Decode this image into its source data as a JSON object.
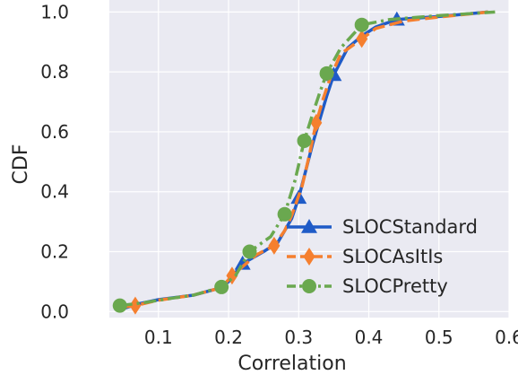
{
  "chart_data": {
    "type": "line",
    "title": "",
    "xlabel": "Correlation",
    "ylabel": "CDF",
    "xlim": [
      0.03,
      0.6
    ],
    "ylim": [
      -0.02,
      1.04
    ],
    "xticks": [
      0.1,
      0.2,
      0.3,
      0.4,
      0.5,
      0.6
    ],
    "xtick_labels": [
      "0.1",
      "0.2",
      "0.3",
      "0.4",
      "0.5",
      "0.6"
    ],
    "yticks": [
      0.0,
      0.2,
      0.4,
      0.6,
      0.8,
      1.0
    ],
    "ytick_labels": [
      "0.0",
      "0.2",
      "0.4",
      "0.6",
      "0.8",
      "1.0"
    ],
    "grid": true,
    "background": "#eaeaf2",
    "legend_position": "lower-right",
    "series": [
      {
        "name": "SLOCStandard",
        "color": "#1f5bc7",
        "marker": "triangle",
        "linestyle": "solid",
        "points": [
          [
            0.05,
            0.01
          ],
          [
            0.07,
            0.025
          ],
          [
            0.1,
            0.04
          ],
          [
            0.15,
            0.055
          ],
          [
            0.19,
            0.08
          ],
          [
            0.2,
            0.1
          ],
          [
            0.21,
            0.13
          ],
          [
            0.22,
            0.16
          ],
          [
            0.25,
            0.2
          ],
          [
            0.27,
            0.23
          ],
          [
            0.28,
            0.27
          ],
          [
            0.29,
            0.31
          ],
          [
            0.3,
            0.38
          ],
          [
            0.31,
            0.47
          ],
          [
            0.32,
            0.56
          ],
          [
            0.33,
            0.64
          ],
          [
            0.34,
            0.72
          ],
          [
            0.35,
            0.79
          ],
          [
            0.37,
            0.88
          ],
          [
            0.39,
            0.92
          ],
          [
            0.41,
            0.95
          ],
          [
            0.44,
            0.975
          ],
          [
            0.5,
            0.985
          ],
          [
            0.57,
            1.0
          ]
        ],
        "marker_at": [
          [
            0.3,
            0.38
          ],
          [
            0.35,
            0.79
          ],
          [
            0.44,
            0.975
          ],
          [
            0.22,
            0.16
          ]
        ]
      },
      {
        "name": "SLOCAsItIs",
        "color": "#f57f2f",
        "marker": "diamond",
        "linestyle": "dashed",
        "points": [
          [
            0.05,
            0.015
          ],
          [
            0.067,
            0.02
          ],
          [
            0.1,
            0.038
          ],
          [
            0.15,
            0.055
          ],
          [
            0.19,
            0.08
          ],
          [
            0.205,
            0.12
          ],
          [
            0.22,
            0.15
          ],
          [
            0.24,
            0.19
          ],
          [
            0.265,
            0.22
          ],
          [
            0.28,
            0.27
          ],
          [
            0.29,
            0.32
          ],
          [
            0.305,
            0.42
          ],
          [
            0.315,
            0.52
          ],
          [
            0.325,
            0.63
          ],
          [
            0.335,
            0.71
          ],
          [
            0.345,
            0.78
          ],
          [
            0.36,
            0.86
          ],
          [
            0.39,
            0.91
          ],
          [
            0.41,
            0.945
          ],
          [
            0.45,
            0.97
          ],
          [
            0.5,
            0.983
          ],
          [
            0.57,
            1.0
          ]
        ],
        "marker_at": [
          [
            0.067,
            0.02
          ],
          [
            0.205,
            0.12
          ],
          [
            0.265,
            0.22
          ],
          [
            0.325,
            0.63
          ],
          [
            0.39,
            0.91
          ]
        ]
      },
      {
        "name": "SLOCPretty",
        "color": "#6aa84f",
        "marker": "circle",
        "linestyle": "dashdot",
        "points": [
          [
            0.045,
            0.02
          ],
          [
            0.08,
            0.03
          ],
          [
            0.12,
            0.045
          ],
          [
            0.15,
            0.055
          ],
          [
            0.19,
            0.082
          ],
          [
            0.21,
            0.12
          ],
          [
            0.23,
            0.2
          ],
          [
            0.26,
            0.25
          ],
          [
            0.28,
            0.325
          ],
          [
            0.295,
            0.44
          ],
          [
            0.308,
            0.57
          ],
          [
            0.32,
            0.66
          ],
          [
            0.33,
            0.73
          ],
          [
            0.34,
            0.795
          ],
          [
            0.36,
            0.88
          ],
          [
            0.39,
            0.957
          ],
          [
            0.43,
            0.975
          ],
          [
            0.5,
            0.988
          ],
          [
            0.58,
            1.0
          ]
        ],
        "marker_at": [
          [
            0.045,
            0.02
          ],
          [
            0.19,
            0.082
          ],
          [
            0.23,
            0.2
          ],
          [
            0.28,
            0.325
          ],
          [
            0.308,
            0.57
          ],
          [
            0.34,
            0.795
          ],
          [
            0.39,
            0.957
          ]
        ]
      }
    ]
  }
}
